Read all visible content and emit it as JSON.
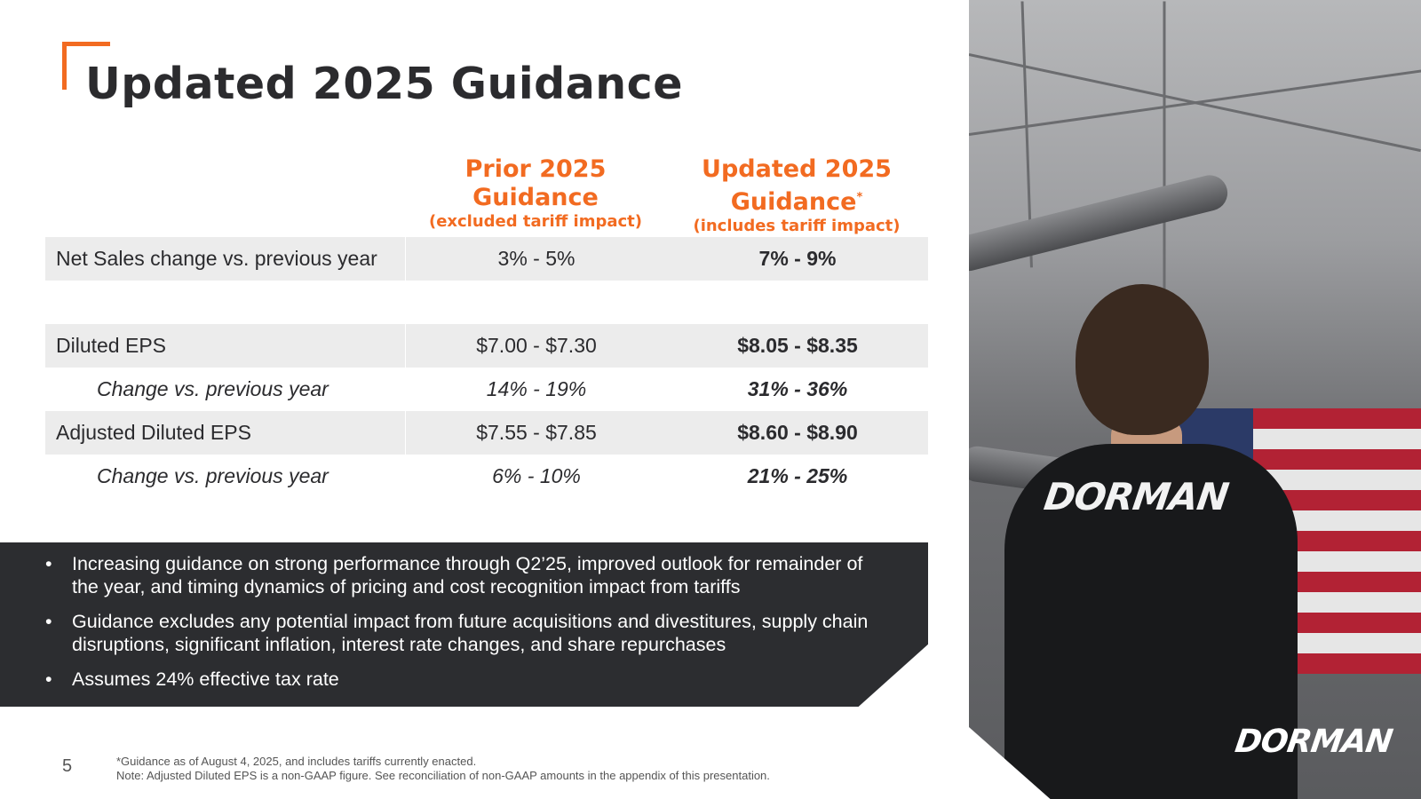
{
  "title": "Updated 2025 Guidance",
  "columns": {
    "prior": {
      "line1": "Prior 2025",
      "line2": "Guidance",
      "sub": "(excluded tariff impact)"
    },
    "updated": {
      "line1": "Updated 2025",
      "line2": "Guidance",
      "marker": "*",
      "sub": "(includes tariff impact)"
    }
  },
  "rows": {
    "net_sales": {
      "label": "Net Sales change vs. previous year",
      "prior": "3% - 5%",
      "updated": "7% - 9%"
    },
    "diluted_eps": {
      "label": "Diluted EPS",
      "prior": "$7.00 - $7.30",
      "updated": "$8.05 - $8.35"
    },
    "diluted_change": {
      "label": "Change vs. previous year",
      "prior": "14% - 19%",
      "updated": "31% - 36%"
    },
    "adj_eps": {
      "label": "Adjusted Diluted EPS",
      "prior": "$7.55 - $7.85",
      "updated": "$8.60 - $8.90"
    },
    "adj_change": {
      "label": "Change vs. previous year",
      "prior": "6% - 10%",
      "updated": "21% - 25%"
    }
  },
  "notes": [
    "Increasing guidance on strong performance through Q2’25, improved outlook for remainder of the year, and timing dynamics of pricing and cost recognition impact from tariffs",
    "Guidance excludes any potential impact from future acquisitions and divestitures, supply chain disruptions, significant inflation, interest rate changes, and share repurchases",
    "Assumes 24% effective tax rate"
  ],
  "bullet": "•",
  "page_number": "5",
  "footnote": {
    "line1": "*Guidance as of August 4, 2025, and includes tariffs currently enacted.",
    "line2": "Note: Adjusted Diluted EPS is a non-GAAP figure. See reconciliation of non-GAAP amounts in the appendix of this presentation."
  },
  "photo": {
    "shirt_logo": "DORMAN",
    "brand_logo": "DORMAN"
  },
  "colors": {
    "accent": "#f26b21",
    "dark": "#2c2d30",
    "row_shade": "#ececec"
  }
}
